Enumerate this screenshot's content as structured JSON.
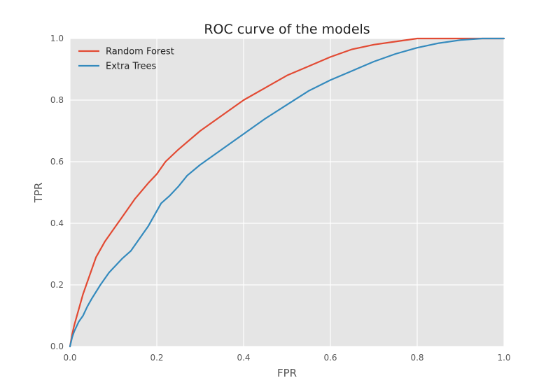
{
  "chart_data": {
    "type": "line",
    "title": "ROC curve of the models",
    "xlabel": "FPR",
    "ylabel": "TPR",
    "xlim": [
      0.0,
      1.0
    ],
    "ylim": [
      0.0,
      1.0
    ],
    "xticks": [
      "0.0",
      "0.2",
      "0.4",
      "0.6",
      "0.8",
      "1.0"
    ],
    "yticks": [
      "0.0",
      "0.2",
      "0.4",
      "0.6",
      "0.8",
      "1.0"
    ],
    "grid": true,
    "legend_position": "top-left",
    "series": [
      {
        "name": "Random Forest",
        "color": "#e24a33",
        "x": [
          0.0,
          0.005,
          0.01,
          0.02,
          0.03,
          0.04,
          0.05,
          0.06,
          0.08,
          0.1,
          0.12,
          0.15,
          0.18,
          0.2,
          0.22,
          0.25,
          0.3,
          0.35,
          0.4,
          0.45,
          0.5,
          0.55,
          0.6,
          0.65,
          0.7,
          0.75,
          0.8,
          0.85,
          0.9,
          0.95,
          1.0
        ],
        "y": [
          0.0,
          0.04,
          0.07,
          0.12,
          0.17,
          0.21,
          0.25,
          0.29,
          0.34,
          0.38,
          0.42,
          0.48,
          0.53,
          0.56,
          0.6,
          0.64,
          0.7,
          0.75,
          0.8,
          0.84,
          0.88,
          0.91,
          0.94,
          0.965,
          0.98,
          0.99,
          1.0,
          1.0,
          1.0,
          1.0,
          1.0
        ]
      },
      {
        "name": "Extra Trees",
        "color": "#348abd",
        "x": [
          0.0,
          0.005,
          0.01,
          0.02,
          0.03,
          0.04,
          0.05,
          0.07,
          0.09,
          0.1,
          0.12,
          0.14,
          0.16,
          0.18,
          0.2,
          0.21,
          0.23,
          0.25,
          0.27,
          0.3,
          0.35,
          0.4,
          0.45,
          0.5,
          0.55,
          0.6,
          0.65,
          0.7,
          0.75,
          0.8,
          0.85,
          0.9,
          0.95,
          1.0
        ],
        "y": [
          0.0,
          0.03,
          0.05,
          0.08,
          0.1,
          0.13,
          0.155,
          0.2,
          0.24,
          0.255,
          0.285,
          0.31,
          0.35,
          0.39,
          0.44,
          0.465,
          0.49,
          0.52,
          0.555,
          0.59,
          0.64,
          0.69,
          0.74,
          0.785,
          0.83,
          0.865,
          0.895,
          0.925,
          0.95,
          0.97,
          0.985,
          0.995,
          1.0,
          1.0
        ]
      }
    ]
  }
}
